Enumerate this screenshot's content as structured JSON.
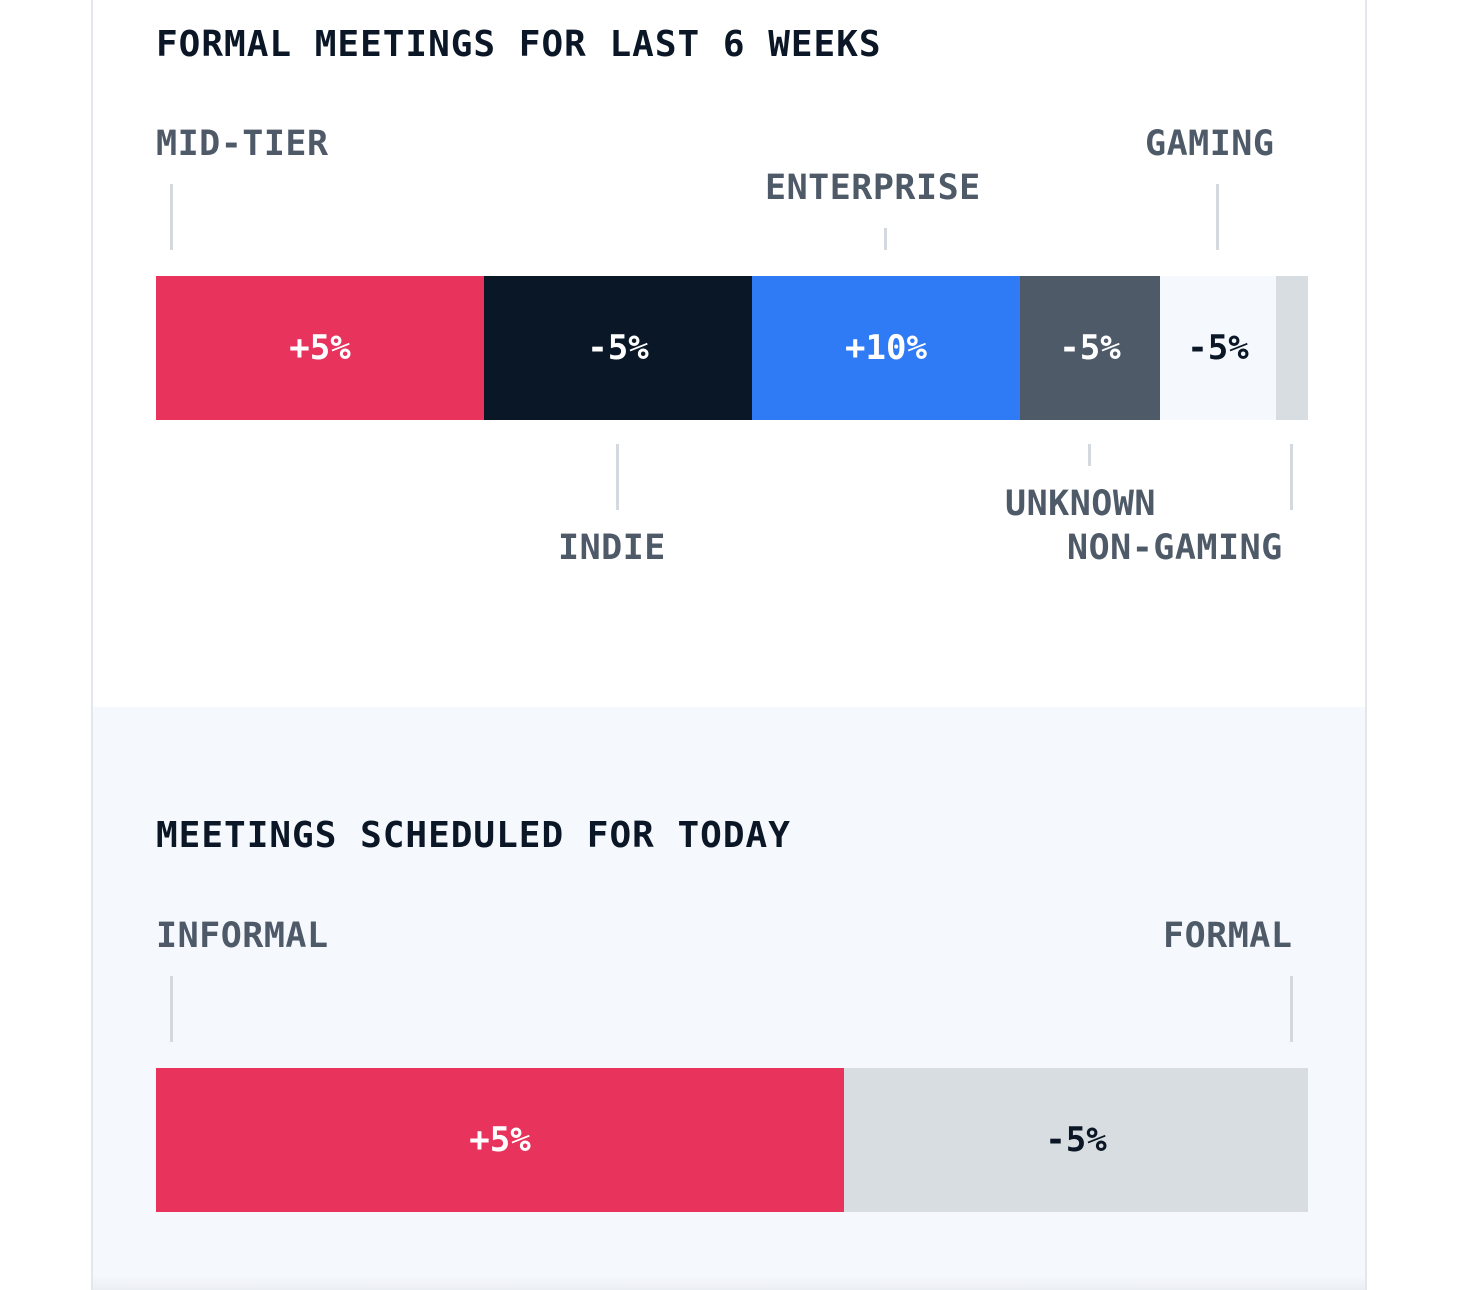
{
  "formal_section": {
    "title": "FORMAL MEETINGS FOR LAST 6 WEEKS",
    "segments": [
      {
        "label": "MID-TIER",
        "value": "+5%",
        "color": "#e8335d",
        "text_color": "#ffffff"
      },
      {
        "label": "INDIE",
        "value": "-5%",
        "color": "#0a1726",
        "text_color": "#ffffff"
      },
      {
        "label": "ENTERPRISE",
        "value": "+10%",
        "color": "#2f7af5",
        "text_color": "#ffffff"
      },
      {
        "label": "UNKNOWN",
        "value": "-5%",
        "color": "#4f5a69",
        "text_color": "#ffffff"
      },
      {
        "label": "GAMING",
        "value": "-5%",
        "color": "#f5f8fd",
        "text_color": "#0b1726"
      },
      {
        "label": "NON-GAMING",
        "value": "",
        "color": "#d8dde2",
        "text_color": "#0b1726"
      }
    ]
  },
  "today_section": {
    "title": "MEETINGS SCHEDULED FOR TODAY",
    "segments": [
      {
        "label": "INFORMAL",
        "value": "+5%",
        "color": "#e8335d",
        "text_color": "#ffffff"
      },
      {
        "label": "FORMAL",
        "value": "-5%",
        "color": "#d8dde2",
        "text_color": "#0b1726"
      }
    ]
  }
}
